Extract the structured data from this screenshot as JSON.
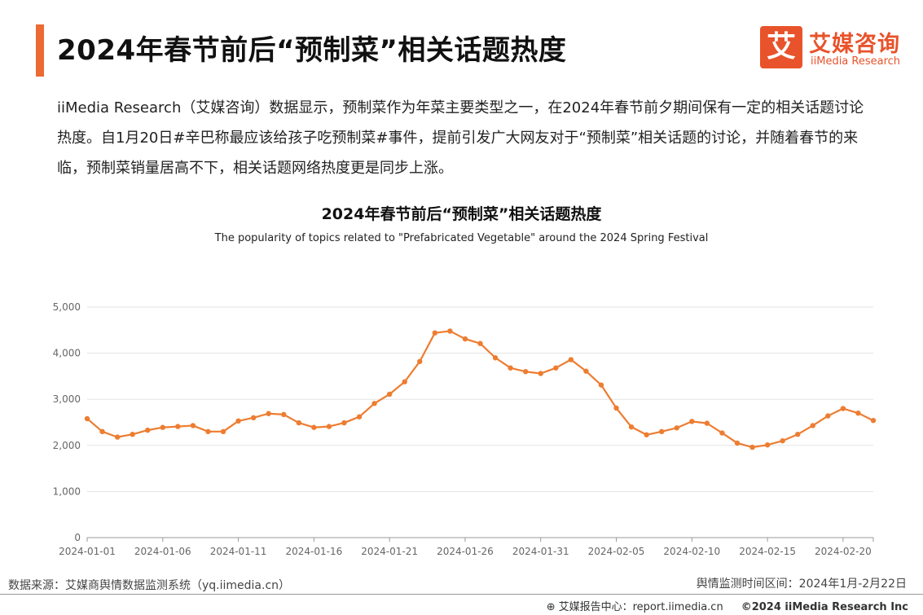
{
  "header": {
    "title": "2024年春节前后“预制菜”相关话题热度",
    "logo_mark": "艾",
    "logo_cn": "艾媒咨询",
    "logo_en": "iiMedia Research"
  },
  "intro": "iiMedia Research（艾媒咨询）数据显示，预制菜作为年菜主要类型之一，在2024年春节前夕期间保有一定的相关话题讨论热度。自1月20日#辛巴称最应该给孩子吃预制菜#事件，提前引发广大网友对于“预制菜”相关话题的讨论，并随着春节的来临，预制菜销量居高不下，相关话题网络热度更是同步上涨。",
  "colors": {
    "accent": "#ec6a33",
    "line": "#ed7d31",
    "brand": "#e8532b"
  },
  "chart_data": {
    "type": "line",
    "title": "2024年春节前后“预制菜”相关话题热度",
    "subtitle": "The popularity of topics related to \"Prefabricated Vegetable\" around the 2024 Spring Festival",
    "xlabel": "",
    "ylabel": "",
    "ylim": [
      0,
      5000
    ],
    "yticks": [
      "0",
      "1,000",
      "2,000",
      "3,000",
      "4,000",
      "5,000"
    ],
    "xtick_labels": [
      "2024-01-01",
      "2024-01-06",
      "2024-01-11",
      "2024-01-16",
      "2024-01-21",
      "2024-01-26",
      "2024-01-31",
      "2024-02-05",
      "2024-02-10",
      "2024-02-15",
      "2024-02-20"
    ],
    "grid": true,
    "x": [
      "2024-01-01",
      "2024-01-02",
      "2024-01-03",
      "2024-01-04",
      "2024-01-05",
      "2024-01-06",
      "2024-01-07",
      "2024-01-08",
      "2024-01-09",
      "2024-01-10",
      "2024-01-11",
      "2024-01-12",
      "2024-01-13",
      "2024-01-14",
      "2024-01-15",
      "2024-01-16",
      "2024-01-17",
      "2024-01-18",
      "2024-01-19",
      "2024-01-20",
      "2024-01-21",
      "2024-01-22",
      "2024-01-23",
      "2024-01-24",
      "2024-01-25",
      "2024-01-26",
      "2024-01-27",
      "2024-01-28",
      "2024-01-29",
      "2024-01-30",
      "2024-01-31",
      "2024-02-01",
      "2024-02-02",
      "2024-02-03",
      "2024-02-04",
      "2024-02-05",
      "2024-02-06",
      "2024-02-07",
      "2024-02-08",
      "2024-02-09",
      "2024-02-10",
      "2024-02-11",
      "2024-02-12",
      "2024-02-13",
      "2024-02-14",
      "2024-02-15",
      "2024-02-16",
      "2024-02-17",
      "2024-02-18",
      "2024-02-19",
      "2024-02-20",
      "2024-02-21",
      "2024-02-22"
    ],
    "series": [
      {
        "name": "",
        "values": [
          2580,
          2300,
          2180,
          2240,
          2330,
          2390,
          2410,
          2430,
          2300,
          2300,
          2530,
          2600,
          2690,
          2670,
          2490,
          2390,
          2410,
          2490,
          2620,
          2910,
          3110,
          3380,
          3820,
          4440,
          4480,
          4310,
          4210,
          3900,
          3680,
          3600,
          3560,
          3680,
          3860,
          3610,
          3310,
          2810,
          2400,
          2230,
          2300,
          2380,
          2520,
          2480,
          2270,
          2050,
          1960,
          2010,
          2100,
          2240,
          2430,
          2640,
          2800,
          2700,
          2540
        ]
      }
    ]
  },
  "footer": {
    "source": "数据来源：艾媒商舆情数据监测系统（yq.iimedia.cn）",
    "period": "舆情监测时间区间：2024年1月-2月22日",
    "report_center": "艾媒报告中心：report.iimedia.cn",
    "copyright": "©2024  iiMedia Research  Inc"
  }
}
